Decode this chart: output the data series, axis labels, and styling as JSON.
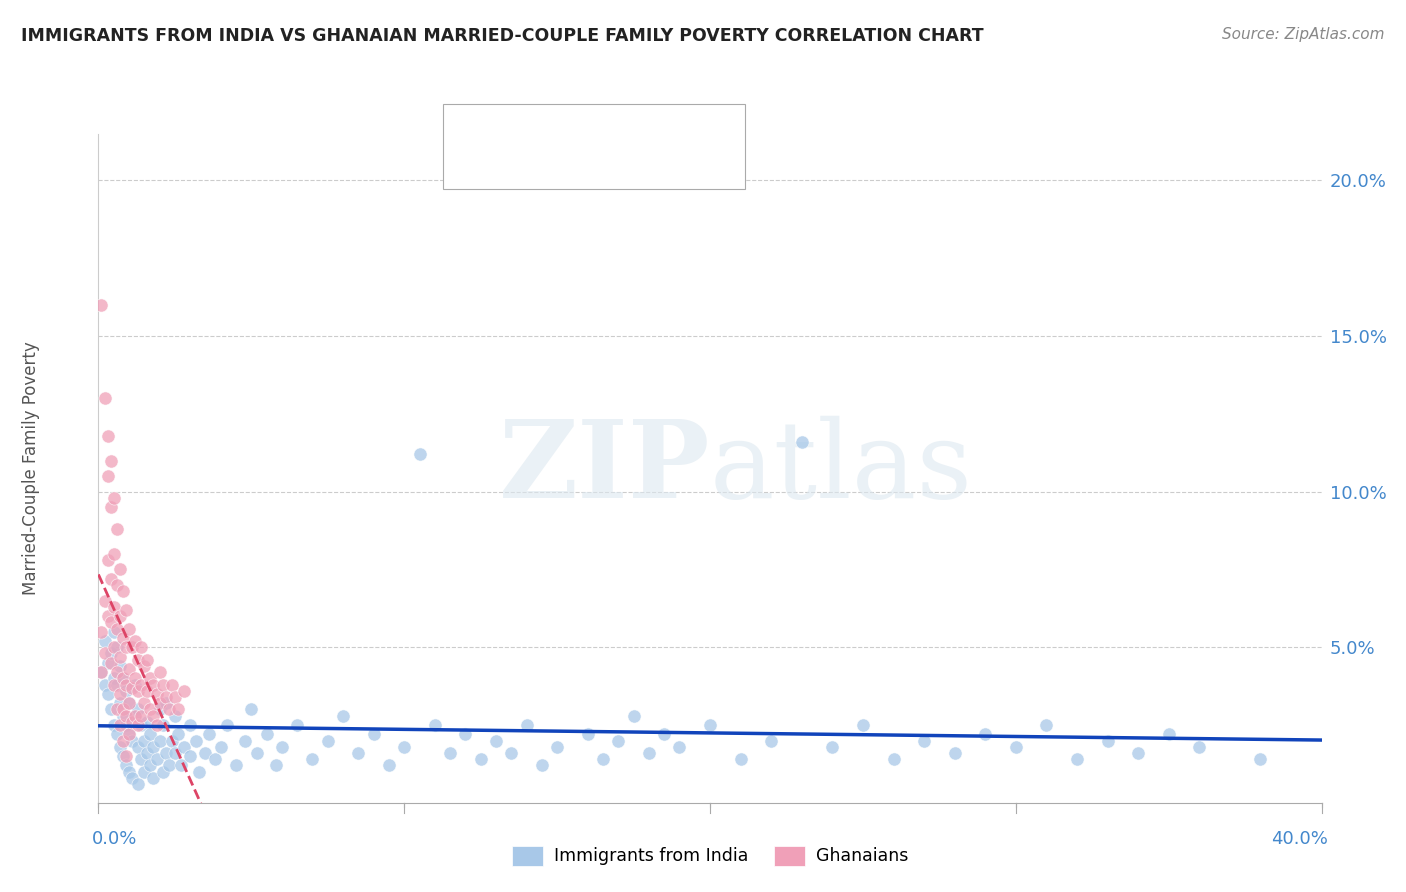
{
  "title": "IMMIGRANTS FROM INDIA VS GHANAIAN MARRIED-COUPLE FAMILY POVERTY CORRELATION CHART",
  "source": "Source: ZipAtlas.com",
  "ylabel": "Married-Couple Family Poverty",
  "right_yticks": [
    "20.0%",
    "15.0%",
    "10.0%",
    "5.0%"
  ],
  "right_ytick_vals": [
    0.2,
    0.15,
    0.1,
    0.05
  ],
  "legend_india_label": "Immigrants from India",
  "legend_ghana_label": "Ghanaians",
  "india_color": "#a8c8e8",
  "ghana_color": "#f0a0b8",
  "india_line_color": "#1144bb",
  "ghana_line_color": "#dd4466",
  "background_color": "#ffffff",
  "watermark": "ZIPatlas",
  "xlim": [
    0.0,
    0.4
  ],
  "ylim": [
    0.0,
    0.215
  ],
  "india_scatter": [
    [
      0.001,
      0.042
    ],
    [
      0.002,
      0.038
    ],
    [
      0.002,
      0.052
    ],
    [
      0.003,
      0.035
    ],
    [
      0.003,
      0.045
    ],
    [
      0.004,
      0.03
    ],
    [
      0.004,
      0.048
    ],
    [
      0.005,
      0.025
    ],
    [
      0.005,
      0.04
    ],
    [
      0.005,
      0.055
    ],
    [
      0.006,
      0.022
    ],
    [
      0.006,
      0.038
    ],
    [
      0.006,
      0.05
    ],
    [
      0.007,
      0.018
    ],
    [
      0.007,
      0.032
    ],
    [
      0.007,
      0.044
    ],
    [
      0.008,
      0.015
    ],
    [
      0.008,
      0.028
    ],
    [
      0.008,
      0.04
    ],
    [
      0.009,
      0.012
    ],
    [
      0.009,
      0.025
    ],
    [
      0.009,
      0.036
    ],
    [
      0.01,
      0.01
    ],
    [
      0.01,
      0.022
    ],
    [
      0.01,
      0.032
    ],
    [
      0.011,
      0.008
    ],
    [
      0.011,
      0.02
    ],
    [
      0.012,
      0.028
    ],
    [
      0.012,
      0.038
    ],
    [
      0.013,
      0.006
    ],
    [
      0.013,
      0.018
    ],
    [
      0.013,
      0.03
    ],
    [
      0.014,
      0.014
    ],
    [
      0.014,
      0.025
    ],
    [
      0.015,
      0.01
    ],
    [
      0.015,
      0.02
    ],
    [
      0.016,
      0.016
    ],
    [
      0.016,
      0.026
    ],
    [
      0.017,
      0.012
    ],
    [
      0.017,
      0.022
    ],
    [
      0.018,
      0.008
    ],
    [
      0.018,
      0.018
    ],
    [
      0.019,
      0.014
    ],
    [
      0.02,
      0.02
    ],
    [
      0.02,
      0.03
    ],
    [
      0.021,
      0.01
    ],
    [
      0.021,
      0.025
    ],
    [
      0.022,
      0.016
    ],
    [
      0.022,
      0.032
    ],
    [
      0.023,
      0.012
    ],
    [
      0.024,
      0.02
    ],
    [
      0.025,
      0.028
    ],
    [
      0.025,
      0.016
    ],
    [
      0.026,
      0.022
    ],
    [
      0.027,
      0.012
    ],
    [
      0.028,
      0.018
    ],
    [
      0.03,
      0.025
    ],
    [
      0.03,
      0.015
    ],
    [
      0.032,
      0.02
    ],
    [
      0.033,
      0.01
    ],
    [
      0.035,
      0.016
    ],
    [
      0.036,
      0.022
    ],
    [
      0.038,
      0.014
    ],
    [
      0.04,
      0.018
    ],
    [
      0.042,
      0.025
    ],
    [
      0.045,
      0.012
    ],
    [
      0.048,
      0.02
    ],
    [
      0.05,
      0.03
    ],
    [
      0.052,
      0.016
    ],
    [
      0.055,
      0.022
    ],
    [
      0.058,
      0.012
    ],
    [
      0.06,
      0.018
    ],
    [
      0.065,
      0.025
    ],
    [
      0.07,
      0.014
    ],
    [
      0.075,
      0.02
    ],
    [
      0.08,
      0.028
    ],
    [
      0.085,
      0.016
    ],
    [
      0.09,
      0.022
    ],
    [
      0.095,
      0.012
    ],
    [
      0.1,
      0.018
    ],
    [
      0.105,
      0.112
    ],
    [
      0.11,
      0.025
    ],
    [
      0.115,
      0.016
    ],
    [
      0.12,
      0.022
    ],
    [
      0.125,
      0.014
    ],
    [
      0.13,
      0.02
    ],
    [
      0.135,
      0.016
    ],
    [
      0.14,
      0.025
    ],
    [
      0.145,
      0.012
    ],
    [
      0.15,
      0.018
    ],
    [
      0.16,
      0.022
    ],
    [
      0.165,
      0.014
    ],
    [
      0.17,
      0.02
    ],
    [
      0.175,
      0.028
    ],
    [
      0.18,
      0.016
    ],
    [
      0.185,
      0.022
    ],
    [
      0.19,
      0.018
    ],
    [
      0.2,
      0.025
    ],
    [
      0.21,
      0.014
    ],
    [
      0.22,
      0.02
    ],
    [
      0.23,
      0.116
    ],
    [
      0.24,
      0.018
    ],
    [
      0.25,
      0.025
    ],
    [
      0.26,
      0.014
    ],
    [
      0.27,
      0.02
    ],
    [
      0.28,
      0.016
    ],
    [
      0.29,
      0.022
    ],
    [
      0.3,
      0.018
    ],
    [
      0.31,
      0.025
    ],
    [
      0.32,
      0.014
    ],
    [
      0.33,
      0.02
    ],
    [
      0.34,
      0.016
    ],
    [
      0.35,
      0.022
    ],
    [
      0.36,
      0.018
    ],
    [
      0.38,
      0.014
    ]
  ],
  "ghana_scatter": [
    [
      0.001,
      0.055
    ],
    [
      0.001,
      0.042
    ],
    [
      0.001,
      0.16
    ],
    [
      0.002,
      0.13
    ],
    [
      0.002,
      0.065
    ],
    [
      0.002,
      0.048
    ],
    [
      0.003,
      0.118
    ],
    [
      0.003,
      0.105
    ],
    [
      0.003,
      0.078
    ],
    [
      0.003,
      0.06
    ],
    [
      0.004,
      0.11
    ],
    [
      0.004,
      0.095
    ],
    [
      0.004,
      0.072
    ],
    [
      0.004,
      0.058
    ],
    [
      0.004,
      0.045
    ],
    [
      0.005,
      0.098
    ],
    [
      0.005,
      0.08
    ],
    [
      0.005,
      0.063
    ],
    [
      0.005,
      0.05
    ],
    [
      0.005,
      0.038
    ],
    [
      0.006,
      0.088
    ],
    [
      0.006,
      0.07
    ],
    [
      0.006,
      0.056
    ],
    [
      0.006,
      0.042
    ],
    [
      0.006,
      0.03
    ],
    [
      0.007,
      0.075
    ],
    [
      0.007,
      0.06
    ],
    [
      0.007,
      0.047
    ],
    [
      0.007,
      0.035
    ],
    [
      0.007,
      0.025
    ],
    [
      0.008,
      0.068
    ],
    [
      0.008,
      0.053
    ],
    [
      0.008,
      0.04
    ],
    [
      0.008,
      0.03
    ],
    [
      0.008,
      0.02
    ],
    [
      0.009,
      0.062
    ],
    [
      0.009,
      0.05
    ],
    [
      0.009,
      0.038
    ],
    [
      0.009,
      0.028
    ],
    [
      0.009,
      0.015
    ],
    [
      0.01,
      0.056
    ],
    [
      0.01,
      0.043
    ],
    [
      0.01,
      0.032
    ],
    [
      0.01,
      0.022
    ],
    [
      0.011,
      0.05
    ],
    [
      0.011,
      0.037
    ],
    [
      0.011,
      0.026
    ],
    [
      0.012,
      0.052
    ],
    [
      0.012,
      0.04
    ],
    [
      0.012,
      0.028
    ],
    [
      0.013,
      0.046
    ],
    [
      0.013,
      0.036
    ],
    [
      0.013,
      0.025
    ],
    [
      0.014,
      0.05
    ],
    [
      0.014,
      0.038
    ],
    [
      0.014,
      0.028
    ],
    [
      0.015,
      0.044
    ],
    [
      0.015,
      0.032
    ],
    [
      0.016,
      0.046
    ],
    [
      0.016,
      0.036
    ],
    [
      0.017,
      0.04
    ],
    [
      0.017,
      0.03
    ],
    [
      0.018,
      0.038
    ],
    [
      0.018,
      0.028
    ],
    [
      0.019,
      0.035
    ],
    [
      0.019,
      0.025
    ],
    [
      0.02,
      0.042
    ],
    [
      0.02,
      0.032
    ],
    [
      0.021,
      0.038
    ],
    [
      0.022,
      0.034
    ],
    [
      0.023,
      0.03
    ],
    [
      0.024,
      0.038
    ],
    [
      0.025,
      0.034
    ],
    [
      0.026,
      0.03
    ],
    [
      0.028,
      0.036
    ]
  ]
}
